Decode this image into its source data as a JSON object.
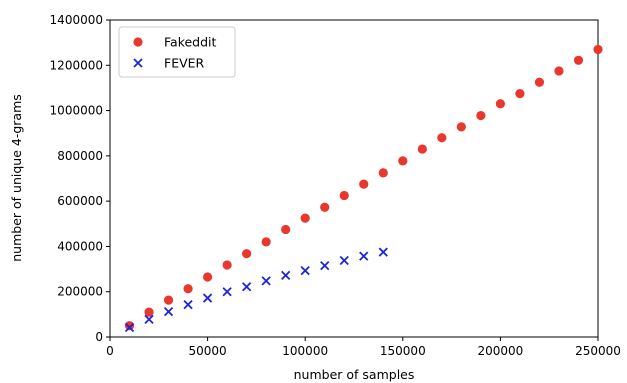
{
  "chart_data": {
    "type": "scatter",
    "xlabel": "number of samples",
    "ylabel": "number of unique 4-grams",
    "xlim": [
      0,
      250000
    ],
    "ylim": [
      0,
      1400000
    ],
    "x_ticks": [
      0,
      50000,
      100000,
      150000,
      200000,
      250000
    ],
    "x_tick_labels": [
      "0",
      "50000",
      "100000",
      "150000",
      "200000",
      "250000"
    ],
    "y_ticks": [
      0,
      200000,
      400000,
      600000,
      800000,
      1000000,
      1200000,
      1400000
    ],
    "y_tick_labels": [
      "0",
      "200000",
      "400000",
      "600000",
      "800000",
      "1000000",
      "1200000",
      "1400000"
    ],
    "grid": false,
    "legend_position": "top-left",
    "series": [
      {
        "name": "Fakeddit",
        "marker": "circle",
        "color": "#e8372c",
        "x": [
          10000,
          20000,
          30000,
          40000,
          50000,
          60000,
          70000,
          80000,
          90000,
          100000,
          110000,
          120000,
          130000,
          140000,
          150000,
          160000,
          170000,
          180000,
          190000,
          200000,
          210000,
          220000,
          230000,
          240000,
          250000
        ],
        "y": [
          50000,
          110000,
          163000,
          213000,
          265000,
          318000,
          368000,
          420000,
          475000,
          525000,
          573000,
          625000,
          675000,
          725000,
          778000,
          830000,
          880000,
          928000,
          978000,
          1030000,
          1075000,
          1125000,
          1175000,
          1222000,
          1270000
        ]
      },
      {
        "name": "FEVER",
        "marker": "x",
        "color": "#1f24d6",
        "x": [
          10000,
          20000,
          30000,
          40000,
          50000,
          60000,
          70000,
          80000,
          90000,
          100000,
          110000,
          120000,
          130000,
          140000
        ],
        "y": [
          42000,
          78000,
          112000,
          143000,
          172000,
          200000,
          222000,
          248000,
          272000,
          293000,
          315000,
          338000,
          357000,
          375000
        ]
      }
    ]
  }
}
